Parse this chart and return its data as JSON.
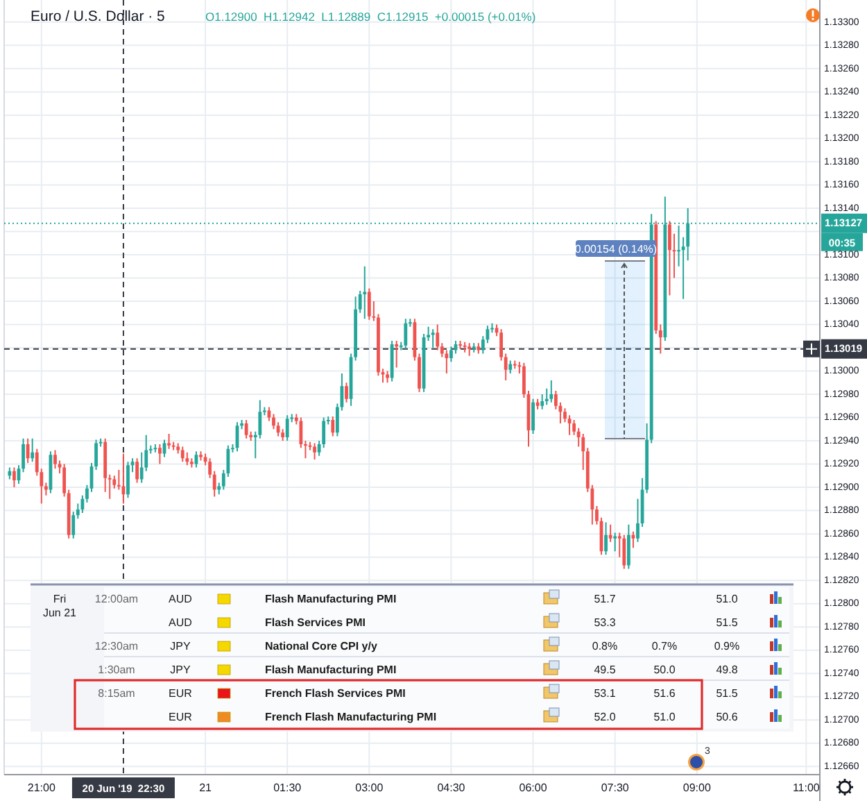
{
  "chart_data": [
    {
      "type": "candlestick",
      "title": "Euro / U.S. Dollar · 5",
      "subtitle": "O1.12900  H1.12942  L1.12889  C1.12915  +0.00015 (+0.01%)",
      "x": [
        "2019-06-20T20:25",
        "2019-06-20T20:30",
        "2019-06-20T20:35",
        "2019-06-20T20:40",
        "2019-06-20T20:45",
        "2019-06-20T20:50",
        "2019-06-20T20:55",
        "2019-06-20T21:00",
        "2019-06-20T21:05",
        "2019-06-20T21:10",
        "2019-06-20T21:15",
        "2019-06-20T21:20",
        "2019-06-20T21:25",
        "2019-06-20T21:30",
        "2019-06-20T21:35",
        "2019-06-20T21:40",
        "2019-06-20T21:45",
        "2019-06-20T21:50",
        "2019-06-20T21:55",
        "2019-06-20T22:00",
        "2019-06-20T22:05",
        "2019-06-20T22:10",
        "2019-06-20T22:15",
        "2019-06-20T22:20",
        "2019-06-20T22:25",
        "2019-06-20T22:30",
        "2019-06-20T22:35",
        "2019-06-20T22:40",
        "2019-06-20T22:45",
        "2019-06-20T22:50",
        "2019-06-20T22:55",
        "2019-06-20T23:00",
        "2019-06-20T23:05",
        "2019-06-20T23:10",
        "2019-06-20T23:15",
        "2019-06-20T23:20",
        "2019-06-20T23:25",
        "2019-06-20T23:30",
        "2019-06-20T23:35",
        "2019-06-20T23:40",
        "2019-06-20T23:45",
        "2019-06-20T23:50",
        "2019-06-20T23:55",
        "2019-06-21T00:00",
        "2019-06-21T00:05",
        "2019-06-21T00:10",
        "2019-06-21T00:15",
        "2019-06-21T00:20",
        "2019-06-21T00:25",
        "2019-06-21T00:30",
        "2019-06-21T00:35",
        "2019-06-21T00:40",
        "2019-06-21T00:45",
        "2019-06-21T00:50",
        "2019-06-21T00:55",
        "2019-06-21T01:00",
        "2019-06-21T01:05",
        "2019-06-21T01:10",
        "2019-06-21T01:15",
        "2019-06-21T01:20",
        "2019-06-21T01:25",
        "2019-06-21T01:30",
        "2019-06-21T01:35",
        "2019-06-21T01:40",
        "2019-06-21T01:45",
        "2019-06-21T01:50",
        "2019-06-21T01:55",
        "2019-06-21T02:00",
        "2019-06-21T02:05",
        "2019-06-21T02:10",
        "2019-06-21T02:15",
        "2019-06-21T02:20",
        "2019-06-21T02:25",
        "2019-06-21T02:30",
        "2019-06-21T02:35",
        "2019-06-21T02:40",
        "2019-06-21T02:45",
        "2019-06-21T02:50",
        "2019-06-21T02:55",
        "2019-06-21T03:00",
        "2019-06-21T03:05",
        "2019-06-21T03:10",
        "2019-06-21T03:15",
        "2019-06-21T03:20",
        "2019-06-21T03:25",
        "2019-06-21T03:30",
        "2019-06-21T03:35",
        "2019-06-21T03:40",
        "2019-06-21T03:45",
        "2019-06-21T03:50",
        "2019-06-21T03:55",
        "2019-06-21T04:00",
        "2019-06-21T04:05",
        "2019-06-21T04:10",
        "2019-06-21T04:15",
        "2019-06-21T04:20",
        "2019-06-21T04:25",
        "2019-06-21T04:30",
        "2019-06-21T04:35",
        "2019-06-21T04:40",
        "2019-06-21T04:45",
        "2019-06-21T04:50",
        "2019-06-21T04:55",
        "2019-06-21T05:00",
        "2019-06-21T05:05",
        "2019-06-21T05:10",
        "2019-06-21T05:15",
        "2019-06-21T05:20",
        "2019-06-21T05:25",
        "2019-06-21T05:30",
        "2019-06-21T05:35",
        "2019-06-21T05:40",
        "2019-06-21T05:45",
        "2019-06-21T05:50",
        "2019-06-21T05:55",
        "2019-06-21T06:00",
        "2019-06-21T06:05",
        "2019-06-21T06:10",
        "2019-06-21T06:15",
        "2019-06-21T06:20",
        "2019-06-21T06:25",
        "2019-06-21T06:30",
        "2019-06-21T06:35",
        "2019-06-21T06:40",
        "2019-06-21T06:45",
        "2019-06-21T06:50",
        "2019-06-21T06:55",
        "2019-06-21T07:00",
        "2019-06-21T07:05",
        "2019-06-21T07:10",
        "2019-06-21T07:15",
        "2019-06-21T07:20",
        "2019-06-21T07:25",
        "2019-06-21T07:30",
        "2019-06-21T07:35",
        "2019-06-21T07:40",
        "2019-06-21T07:45",
        "2019-06-21T07:50",
        "2019-06-21T07:55",
        "2019-06-21T08:00",
        "2019-06-21T08:05",
        "2019-06-21T08:10",
        "2019-06-21T08:15",
        "2019-06-21T08:20",
        "2019-06-21T08:25",
        "2019-06-21T08:30",
        "2019-06-21T08:35",
        "2019-06-21T08:40",
        "2019-06-21T08:45",
        "2019-06-21T08:50"
      ],
      "ohlc": [
        [
          1.1291,
          1.12917,
          1.12907,
          1.12914
        ],
        [
          1.12914,
          1.12917,
          1.129,
          1.12906
        ],
        [
          1.12906,
          1.12919,
          1.12903,
          1.12916
        ],
        [
          1.12916,
          1.12942,
          1.12913,
          1.12937
        ],
        [
          1.12937,
          1.12942,
          1.12921,
          1.12925
        ],
        [
          1.12925,
          1.12942,
          1.12922,
          1.1293
        ],
        [
          1.1293,
          1.12933,
          1.1291,
          1.12913
        ],
        [
          1.12913,
          1.12916,
          1.12886,
          1.12901
        ],
        [
          1.12901,
          1.12904,
          1.12893,
          1.12898
        ],
        [
          1.12898,
          1.12931,
          1.12895,
          1.12928
        ],
        [
          1.12928,
          1.12932,
          1.12916,
          1.1292
        ],
        [
          1.1292,
          1.12923,
          1.12912,
          1.12917
        ],
        [
          1.12917,
          1.1292,
          1.12892,
          1.12895
        ],
        [
          1.12895,
          1.12898,
          1.12856,
          1.12859
        ],
        [
          1.12859,
          1.12879,
          1.12856,
          1.12876
        ],
        [
          1.12876,
          1.12886,
          1.12873,
          1.12881
        ],
        [
          1.12881,
          1.12893,
          1.12878,
          1.1289
        ],
        [
          1.1289,
          1.12902,
          1.12887,
          1.12899
        ],
        [
          1.12899,
          1.12921,
          1.12896,
          1.12918
        ],
        [
          1.12918,
          1.12941,
          1.12915,
          1.12938
        ],
        [
          1.12938,
          1.12942,
          1.12935,
          1.12939
        ],
        [
          1.12939,
          1.12942,
          1.12896,
          1.12908
        ],
        [
          1.12908,
          1.12911,
          1.1289,
          1.12907
        ],
        [
          1.12907,
          1.1291,
          1.12899,
          1.12902
        ],
        [
          1.12902,
          1.12915,
          1.12898,
          1.12901
        ],
        [
          1.12901,
          1.12929,
          1.12886,
          1.12894
        ],
        [
          1.12894,
          1.12922,
          1.12891,
          1.12919
        ],
        [
          1.12919,
          1.12925,
          1.12913,
          1.12922
        ],
        [
          1.12922,
          1.12925,
          1.12904,
          1.12907
        ],
        [
          1.12907,
          1.1293,
          1.12904,
          1.12917
        ],
        [
          1.12917,
          1.12945,
          1.12914,
          1.12932
        ],
        [
          1.12932,
          1.12936,
          1.12929,
          1.12933
        ],
        [
          1.12933,
          1.12937,
          1.1293,
          1.12934
        ],
        [
          1.12934,
          1.12937,
          1.1292,
          1.12929
        ],
        [
          1.12929,
          1.12941,
          1.12926,
          1.12938
        ],
        [
          1.12938,
          1.12946,
          1.12933,
          1.12936
        ],
        [
          1.12936,
          1.12939,
          1.12932,
          1.12935
        ],
        [
          1.12935,
          1.12938,
          1.12929,
          1.12932
        ],
        [
          1.12932,
          1.12935,
          1.12922,
          1.12925
        ],
        [
          1.12925,
          1.1293,
          1.12919,
          1.12922
        ],
        [
          1.12922,
          1.12925,
          1.12917,
          1.1292
        ],
        [
          1.1292,
          1.12931,
          1.12917,
          1.12928
        ],
        [
          1.12928,
          1.12931,
          1.12923,
          1.12926
        ],
        [
          1.12926,
          1.12929,
          1.12919,
          1.12922
        ],
        [
          1.12922,
          1.12925,
          1.12908,
          1.12911
        ],
        [
          1.12911,
          1.12914,
          1.12892,
          1.12898
        ],
        [
          1.12898,
          1.12904,
          1.12894,
          1.12901
        ],
        [
          1.12901,
          1.12915,
          1.12898,
          1.12912
        ],
        [
          1.12912,
          1.12936,
          1.12909,
          1.12933
        ],
        [
          1.12933,
          1.12937,
          1.1293,
          1.12934
        ],
        [
          1.12934,
          1.12956,
          1.12931,
          1.12953
        ],
        [
          1.12953,
          1.12958,
          1.1295,
          1.12955
        ],
        [
          1.12955,
          1.12958,
          1.12942,
          1.12945
        ],
        [
          1.12945,
          1.12948,
          1.1294,
          1.12943
        ],
        [
          1.12943,
          1.12948,
          1.12925,
          1.12945
        ],
        [
          1.12945,
          1.12975,
          1.12942,
          1.12965
        ],
        [
          1.12965,
          1.12969,
          1.12962,
          1.12966
        ],
        [
          1.12966,
          1.12969,
          1.12957,
          1.1296
        ],
        [
          1.1296,
          1.12963,
          1.1295,
          1.12953
        ],
        [
          1.12953,
          1.12956,
          1.12944,
          1.12947
        ],
        [
          1.12947,
          1.1295,
          1.1294,
          1.12943
        ],
        [
          1.12943,
          1.12962,
          1.1294,
          1.12959
        ],
        [
          1.12959,
          1.12963,
          1.12956,
          1.1296
        ],
        [
          1.1296,
          1.12963,
          1.12954,
          1.12957
        ],
        [
          1.12957,
          1.1296,
          1.12934,
          1.12937
        ],
        [
          1.12937,
          1.1294,
          1.12925,
          1.12936
        ],
        [
          1.12936,
          1.12939,
          1.12932,
          1.12935
        ],
        [
          1.12935,
          1.12938,
          1.12924,
          1.1293
        ],
        [
          1.1293,
          1.1294,
          1.12927,
          1.12937
        ],
        [
          1.12937,
          1.1296,
          1.12934,
          1.12957
        ],
        [
          1.12957,
          1.12961,
          1.12954,
          1.12958
        ],
        [
          1.12958,
          1.12961,
          1.12944,
          1.12947
        ],
        [
          1.12947,
          1.12972,
          1.12944,
          1.12969
        ],
        [
          1.12969,
          1.12998,
          1.12966,
          1.12987
        ],
        [
          1.12987,
          1.1299,
          1.12973,
          1.12976
        ],
        [
          1.12976,
          1.13015,
          1.1297,
          1.13012
        ],
        [
          1.13012,
          1.13064,
          1.13009,
          1.13053
        ],
        [
          1.13053,
          1.13069,
          1.1305,
          1.13066
        ],
        [
          1.13066,
          1.1309,
          1.13045,
          1.13068
        ],
        [
          1.13068,
          1.13071,
          1.13044,
          1.13047
        ],
        [
          1.13047,
          1.1306,
          1.13043,
          1.13046
        ],
        [
          1.13046,
          1.13049,
          1.12996,
          1.12999
        ],
        [
          1.12999,
          1.13002,
          1.1299,
          1.12997
        ],
        [
          1.12997,
          1.13,
          1.1299,
          1.12994
        ],
        [
          1.12994,
          1.13026,
          1.12991,
          1.13023
        ],
        [
          1.13023,
          1.13026,
          1.13003,
          1.13021
        ],
        [
          1.13021,
          1.13025,
          1.13018,
          1.13022
        ],
        [
          1.13022,
          1.13045,
          1.13019,
          1.13041
        ],
        [
          1.13041,
          1.13045,
          1.13038,
          1.13042
        ],
        [
          1.13042,
          1.13045,
          1.13009,
          1.13012
        ],
        [
          1.13012,
          1.13015,
          1.12982,
          1.12985
        ],
        [
          1.12985,
          1.13032,
          1.12982,
          1.13029
        ],
        [
          1.13029,
          1.13038,
          1.13026,
          1.13031
        ],
        [
          1.13031,
          1.13036,
          1.1302,
          1.13033
        ],
        [
          1.13033,
          1.1304,
          1.13018,
          1.13021
        ],
        [
          1.13021,
          1.13024,
          1.13012,
          1.13015
        ],
        [
          1.13015,
          1.13018,
          1.12998,
          1.13011
        ],
        [
          1.13011,
          1.13021,
          1.13008,
          1.13018
        ],
        [
          1.13018,
          1.13026,
          1.13015,
          1.13023
        ],
        [
          1.13023,
          1.13026,
          1.13019,
          1.13022
        ],
        [
          1.13022,
          1.13025,
          1.13016,
          1.13021
        ],
        [
          1.13021,
          1.13024,
          1.13013,
          1.13019
        ],
        [
          1.13019,
          1.13024,
          1.13016,
          1.13021
        ],
        [
          1.13021,
          1.13024,
          1.13015,
          1.13018
        ],
        [
          1.13018,
          1.1303,
          1.13015,
          1.13027
        ],
        [
          1.13027,
          1.13039,
          1.13024,
          1.13036
        ],
        [
          1.13036,
          1.13041,
          1.13033,
          1.13037
        ],
        [
          1.13037,
          1.1304,
          1.1303,
          1.13033
        ],
        [
          1.13033,
          1.13036,
          1.13009,
          1.13012
        ],
        [
          1.13012,
          1.13015,
          1.12992,
          1.13001
        ],
        [
          1.13001,
          1.13009,
          1.12998,
          1.13006
        ],
        [
          1.13006,
          1.13009,
          1.13002,
          1.13005
        ],
        [
          1.13005,
          1.13008,
          1.12998,
          1.13004
        ],
        [
          1.13004,
          1.13007,
          1.12977,
          1.1298
        ],
        [
          1.1298,
          1.12983,
          1.12935,
          1.12949
        ],
        [
          1.12949,
          1.12976,
          1.12946,
          1.12973
        ],
        [
          1.12973,
          1.12976,
          1.12967,
          1.1297
        ],
        [
          1.1297,
          1.1298,
          1.12967,
          1.12974
        ],
        [
          1.12974,
          1.12985,
          1.12971,
          1.12976
        ],
        [
          1.12976,
          1.12992,
          1.12973,
          1.1298
        ],
        [
          1.1298,
          1.12983,
          1.12967,
          1.1297
        ],
        [
          1.1297,
          1.12973,
          1.12955,
          1.12965
        ],
        [
          1.12965,
          1.12968,
          1.12956,
          1.12959
        ],
        [
          1.12959,
          1.12962,
          1.12945,
          1.12955
        ],
        [
          1.12955,
          1.12958,
          1.12945,
          1.12948
        ],
        [
          1.12948,
          1.12951,
          1.12935,
          1.12943
        ],
        [
          1.12943,
          1.12946,
          1.12915,
          1.12931
        ],
        [
          1.12931,
          1.12934,
          1.12896,
          1.12899
        ],
        [
          1.12899,
          1.12902,
          1.12868,
          1.12881
        ],
        [
          1.12881,
          1.12884,
          1.12868,
          1.12871
        ],
        [
          1.12871,
          1.12874,
          1.12842,
          1.12845
        ],
        [
          1.12845,
          1.1287,
          1.12842,
          1.12859
        ],
        [
          1.12859,
          1.12868,
          1.12853,
          1.12856
        ],
        [
          1.12856,
          1.12861,
          1.12845,
          1.12858
        ],
        [
          1.12858,
          1.12861,
          1.1284,
          1.12856
        ],
        [
          1.12856,
          1.12859,
          1.1283,
          1.12833
        ],
        [
          1.12833,
          1.12868,
          1.1283,
          1.12859
        ],
        [
          1.12859,
          1.12862,
          1.12848,
          1.12856
        ],
        [
          1.12856,
          1.1289,
          1.12853,
          1.12869
        ],
        [
          1.12869,
          1.12908,
          1.12866,
          1.12898
        ],
        [
          1.12898,
          1.12955,
          1.12895,
          1.12941
        ],
        [
          1.12941,
          1.13135,
          1.12938,
          1.13126
        ],
        [
          1.13126,
          1.13129,
          1.13032,
          1.13035
        ],
        [
          1.13035,
          1.1304,
          1.13015,
          1.13029
        ],
        [
          1.13029,
          1.1315,
          1.13026,
          1.13126
        ],
        [
          1.13126,
          1.13129,
          1.13065,
          1.13104
        ],
        [
          1.13104,
          1.13118,
          1.1308,
          1.13103
        ],
        [
          1.13103,
          1.13125,
          1.1309,
          1.13104
        ],
        [
          1.13104,
          1.13115,
          1.13062,
          1.13107
        ],
        [
          1.13107,
          1.1314,
          1.13095,
          1.13127
        ]
      ],
      "xlim": [
        "2019-06-20T20:19",
        "2019-06-21T11:15"
      ],
      "xticks": [
        {
          "value": "2019-06-20T21:00",
          "label": "21:00"
        },
        {
          "value": "2019-06-21T00:00",
          "label": "21"
        },
        {
          "value": "2019-06-21T01:30",
          "label": "01:30"
        },
        {
          "value": "2019-06-21T03:00",
          "label": "03:00"
        },
        {
          "value": "2019-06-21T04:30",
          "label": "04:30"
        },
        {
          "value": "2019-06-21T06:00",
          "label": "06:00"
        },
        {
          "value": "2019-06-21T07:30",
          "label": "07:30"
        },
        {
          "value": "2019-06-21T09:00",
          "label": "09:00"
        },
        {
          "value": "2019-06-21T11:00",
          "label": "11:00"
        }
      ],
      "ylim": [
        1.12653,
        1.13319
      ],
      "yticks": [
        {
          "value": 1.1266,
          "label": "1.12660"
        },
        {
          "value": 1.1268,
          "label": "1.12680"
        },
        {
          "value": 1.127,
          "label": "1.12700"
        },
        {
          "value": 1.1272,
          "label": "1.12720"
        },
        {
          "value": 1.1274,
          "label": "1.12740"
        },
        {
          "value": 1.1276,
          "label": "1.12760"
        },
        {
          "value": 1.1278,
          "label": "1.12780"
        },
        {
          "value": 1.128,
          "label": "1.12800"
        },
        {
          "value": 1.1282,
          "label": "1.12820"
        },
        {
          "value": 1.1284,
          "label": "1.12840"
        },
        {
          "value": 1.1286,
          "label": "1.12860"
        },
        {
          "value": 1.1288,
          "label": "1.12880"
        },
        {
          "value": 1.129,
          "label": "1.12900"
        },
        {
          "value": 1.1292,
          "label": "1.12920"
        },
        {
          "value": 1.1294,
          "label": "1.12940"
        },
        {
          "value": 1.1296,
          "label": "1.12960"
        },
        {
          "value": 1.1298,
          "label": "1.12980"
        },
        {
          "value": 1.13,
          "label": "1.13000"
        },
        {
          "value": 1.1302,
          "label": null
        },
        {
          "value": 1.1304,
          "label": "1.13040"
        },
        {
          "value": 1.1306,
          "label": "1.13060"
        },
        {
          "value": 1.1308,
          "label": "1.13080"
        },
        {
          "value": 1.131,
          "label": "1.13100"
        },
        {
          "value": 1.1312,
          "label": null
        },
        {
          "value": 1.1314,
          "label": "1.13140"
        },
        {
          "value": 1.1316,
          "label": "1.13160"
        },
        {
          "value": 1.1318,
          "label": "1.13180"
        },
        {
          "value": 1.132,
          "label": "1.13200"
        },
        {
          "value": 1.1322,
          "label": "1.13220"
        },
        {
          "value": 1.1324,
          "label": "1.13240"
        },
        {
          "value": 1.1326,
          "label": "1.13260"
        },
        {
          "value": 1.1328,
          "label": "1.13280"
        },
        {
          "value": 1.133,
          "label": "1.13300"
        }
      ],
      "grid": true,
      "ref_lines": [
        {
          "axis": "y",
          "value": 1.13127,
          "label": "1.13127",
          "color": "#26a69a",
          "line_style": "dotted"
        },
        {
          "axis": "y",
          "value": 1.13019,
          "label": "1.13019",
          "color": "#363a45",
          "line_style": "dashed"
        },
        {
          "axis": "x",
          "value": "2019-06-20T22:30",
          "label": "20 Jun '19  22:30",
          "color": "#363a45",
          "line_style": "dashed"
        }
      ],
      "annotations": [
        "0.00154 (0.14%)",
        "00:35",
        "3"
      ]
    },
    {
      "type": "other",
      "cell_labels": [
        [
          "Fri",
          "12:00am",
          "AUD",
          "Flash Manufacturing PMI",
          "51.7",
          null,
          "51.0"
        ],
        [
          "Jun 21",
          null,
          "AUD",
          "Flash Services PMI",
          "53.3",
          null,
          "51.5"
        ],
        [
          null,
          "12:30am",
          "JPY",
          "National Core CPI y/y",
          "0.8%",
          "0.7%",
          "0.9%"
        ],
        [
          null,
          "1:30am",
          "JPY",
          "Flash Manufacturing PMI",
          "49.5",
          "50.0",
          "49.8"
        ],
        [
          null,
          "8:15am",
          "EUR",
          "French Flash Services PMI",
          "53.1",
          "51.6",
          "51.5"
        ],
        [
          null,
          null,
          "EUR",
          "French Flash Manufacturing PMI",
          "52.0",
          "51.0",
          "50.6"
        ]
      ],
      "colors": [
        "#f5d800",
        "#f5d800",
        "#f5d800",
        "#f5d800",
        "#e8141a",
        "#f08a24"
      ]
    }
  ]
}
